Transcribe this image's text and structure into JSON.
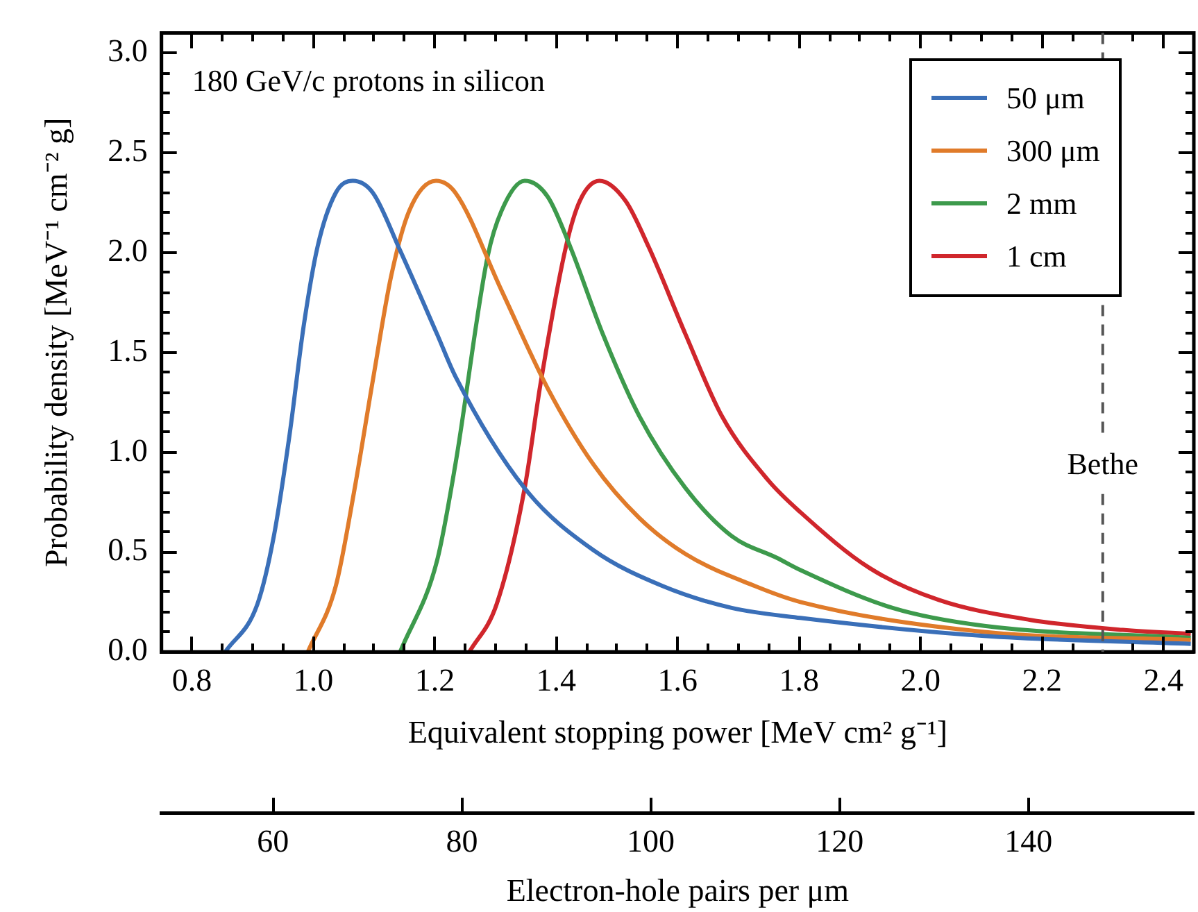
{
  "chart_data": {
    "type": "line",
    "xlabel": "Equivalent stopping power [MeV cm² g⁻¹]",
    "ylabel": "Probability density [MeV⁻¹ cm⁻² g]",
    "x2label": "Electron-hole pairs per μm",
    "annotations": [
      "180 GeV/c protons in silicon"
    ],
    "marker": "none",
    "legend": "top right",
    "grid": false,
    "xlim": [
      0.75,
      2.45
    ],
    "ylim": [
      0,
      3.1
    ],
    "x2lim": [
      48.2,
      157.5
    ],
    "xticks": [
      {
        "value": 0.8,
        "label": "0.8"
      },
      {
        "value": 0.85,
        "label": null
      },
      {
        "value": 0.9,
        "label": null
      },
      {
        "value": 0.95,
        "label": null
      },
      {
        "value": 1,
        "label": "1.0"
      },
      {
        "value": 1.05,
        "label": null
      },
      {
        "value": 1.1,
        "label": null
      },
      {
        "value": 1.15,
        "label": null
      },
      {
        "value": 1.2,
        "label": "1.2"
      },
      {
        "value": 1.25,
        "label": null
      },
      {
        "value": 1.3,
        "label": null
      },
      {
        "value": 1.35,
        "label": null
      },
      {
        "value": 1.4,
        "label": "1.4"
      },
      {
        "value": 1.45,
        "label": null
      },
      {
        "value": 1.5,
        "label": null
      },
      {
        "value": 1.55,
        "label": null
      },
      {
        "value": 1.6,
        "label": "1.6"
      },
      {
        "value": 1.65,
        "label": null
      },
      {
        "value": 1.7,
        "label": null
      },
      {
        "value": 1.75,
        "label": null
      },
      {
        "value": 1.8,
        "label": "1.8"
      },
      {
        "value": 1.85,
        "label": null
      },
      {
        "value": 1.9,
        "label": null
      },
      {
        "value": 1.95,
        "label": null
      },
      {
        "value": 2,
        "label": "2.0"
      },
      {
        "value": 2.05,
        "label": null
      },
      {
        "value": 2.1,
        "label": null
      },
      {
        "value": 2.15,
        "label": null
      },
      {
        "value": 2.2,
        "label": "2.2"
      },
      {
        "value": 2.25,
        "label": null
      },
      {
        "value": 2.35,
        "label": null
      },
      {
        "value": 2.4,
        "label": "2.4"
      }
    ],
    "yticks": [
      {
        "value": 0,
        "label": "0.0"
      },
      {
        "value": 0.1,
        "label": null
      },
      {
        "value": 0.2,
        "label": null
      },
      {
        "value": 0.3,
        "label": null
      },
      {
        "value": 0.4,
        "label": null
      },
      {
        "value": 0.5,
        "label": "0.5"
      },
      {
        "value": 0.6,
        "label": null
      },
      {
        "value": 0.7,
        "label": null
      },
      {
        "value": 0.8,
        "label": null
      },
      {
        "value": 0.9,
        "label": null
      },
      {
        "value": 1,
        "label": "1.0"
      },
      {
        "value": 1.1,
        "label": null
      },
      {
        "value": 1.2,
        "label": null
      },
      {
        "value": 1.3,
        "label": null
      },
      {
        "value": 1.4,
        "label": null
      },
      {
        "value": 1.5,
        "label": "1.5"
      },
      {
        "value": 1.6,
        "label": null
      },
      {
        "value": 1.7,
        "label": null
      },
      {
        "value": 1.8,
        "label": null
      },
      {
        "value": 1.9,
        "label": null
      },
      {
        "value": 2,
        "label": "2.0"
      },
      {
        "value": 2.1,
        "label": null
      },
      {
        "value": 2.2,
        "label": null
      },
      {
        "value": 2.3,
        "label": null
      },
      {
        "value": 2.4,
        "label": null
      },
      {
        "value": 2.5,
        "label": "2.5"
      },
      {
        "value": 2.6,
        "label": null
      },
      {
        "value": 2.7,
        "label": null
      },
      {
        "value": 2.8,
        "label": null
      },
      {
        "value": 2.9,
        "label": null
      },
      {
        "value": 3,
        "label": "3.0"
      }
    ],
    "x2ticks": [
      60,
      80,
      100,
      120,
      140
    ],
    "ref_lines": [
      {
        "axis": "x",
        "value": 2.3,
        "label": "Bethe",
        "color": "#555555",
        "line_style": "dashed"
      }
    ],
    "series": [
      {
        "name": "50 μm",
        "color": "#3a6fb8",
        "x": [
          0.855,
          0.908,
          0.935,
          0.961,
          0.984,
          1.007,
          1.037,
          1.065,
          1.098,
          1.143,
          1.204,
          1.234,
          1.348,
          1.461,
          1.575,
          1.689,
          1.802,
          2.105,
          2.445
        ],
        "values": [
          0,
          0.24,
          0.58,
          1.09,
          1.63,
          2.03,
          2.3,
          2.36,
          2.3,
          2.01,
          1.59,
          1.38,
          0.82,
          0.51,
          0.33,
          0.22,
          0.17,
          0.08,
          0.04
        ]
      },
      {
        "name": "300 μm",
        "color": "#e07b2a",
        "x": [
          0.991,
          1.037,
          1.067,
          1.098,
          1.128,
          1.158,
          1.202,
          1.234,
          1.31,
          1.386,
          1.461,
          1.537,
          1.613,
          1.727,
          1.802,
          2.105,
          2.445
        ],
        "values": [
          0,
          0.33,
          0.8,
          1.36,
          1.88,
          2.21,
          2.36,
          2.3,
          1.81,
          1.32,
          0.94,
          0.67,
          0.49,
          0.33,
          0.25,
          0.1,
          0.06
        ]
      },
      {
        "name": "2 mm",
        "color": "#3d9a4c",
        "x": [
          1.143,
          1.204,
          1.234,
          1.287,
          1.31,
          1.348,
          1.386,
          1.423,
          1.477,
          1.537,
          1.613,
          1.689,
          1.764,
          1.802,
          1.954,
          2.105,
          2.445
        ],
        "values": [
          0,
          0.46,
          0.94,
          1.98,
          2.21,
          2.36,
          2.28,
          2.03,
          1.59,
          1.18,
          0.82,
          0.58,
          0.47,
          0.41,
          0.22,
          0.13,
          0.07
        ]
      },
      {
        "name": "1 cm",
        "color": "#d0262c",
        "x": [
          1.257,
          1.302,
          1.348,
          1.374,
          1.416,
          1.439,
          1.471,
          1.514,
          1.552,
          1.613,
          1.673,
          1.749,
          1.802,
          1.916,
          2.03,
          2.181,
          2.333,
          2.445
        ],
        "values": [
          0,
          0.24,
          0.82,
          1.34,
          2.03,
          2.26,
          2.36,
          2.26,
          2.03,
          1.59,
          1.18,
          0.86,
          0.7,
          0.42,
          0.26,
          0.16,
          0.11,
          0.09
        ]
      }
    ]
  }
}
